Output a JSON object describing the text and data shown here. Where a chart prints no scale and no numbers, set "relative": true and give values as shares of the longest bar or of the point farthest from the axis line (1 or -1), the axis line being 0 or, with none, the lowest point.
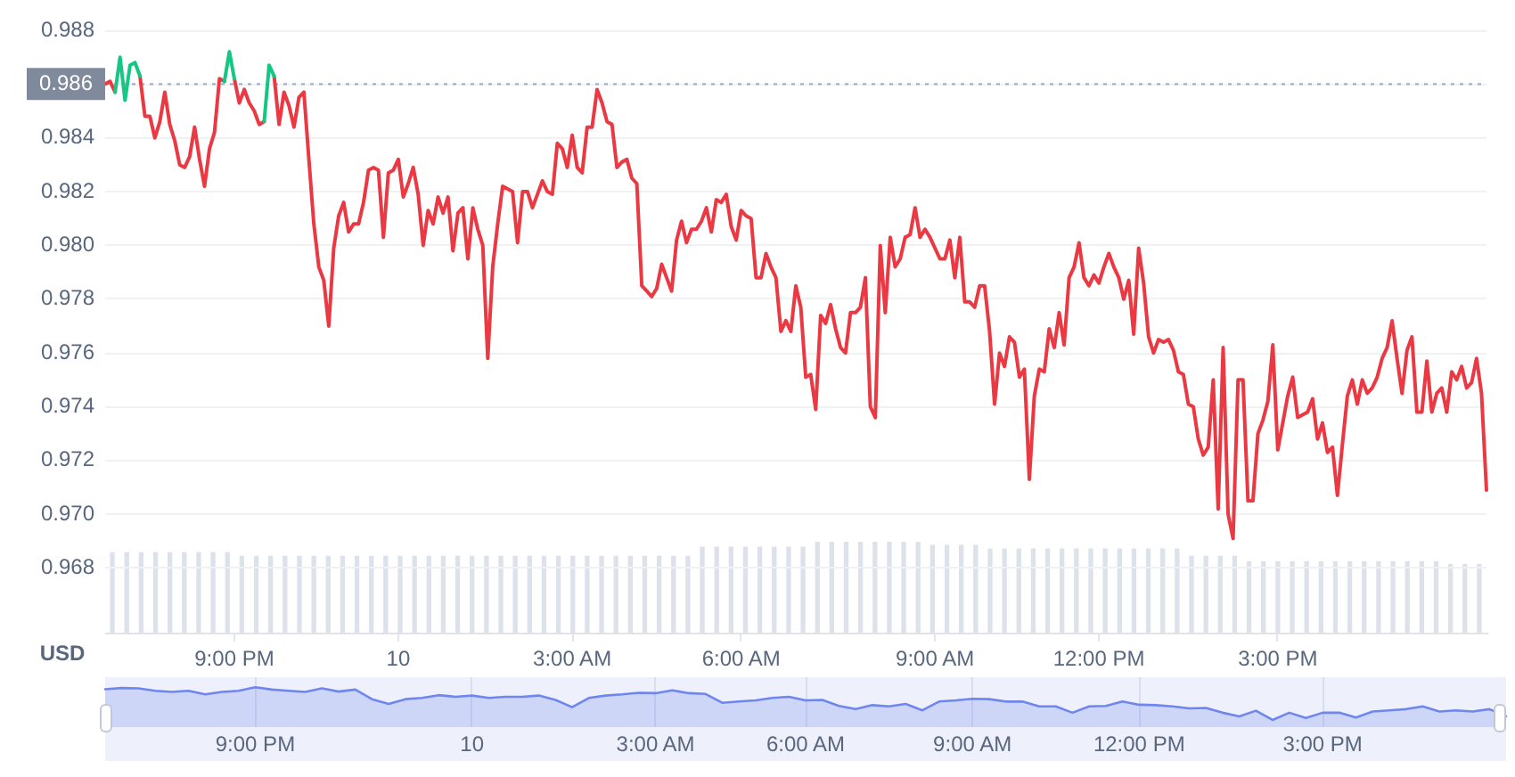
{
  "chart_data": [
    {
      "type": "line",
      "ylabel": "USD",
      "categories": [
        null,
        null,
        null,
        null,
        null,
        null,
        null,
        null,
        null,
        null,
        null,
        null,
        null,
        null,
        null,
        null,
        null,
        null,
        null,
        null,
        null,
        null,
        null,
        null,
        null,
        null,
        "9:00 PM",
        null,
        null,
        null,
        null,
        null,
        null,
        null,
        null,
        null,
        null,
        null,
        null,
        null,
        null,
        null,
        null,
        null,
        null,
        null,
        null,
        null,
        null,
        null,
        null,
        null,
        null,
        null,
        null,
        null,
        null,
        null,
        null,
        "10",
        null,
        null,
        null,
        null,
        null,
        null,
        null,
        null,
        null,
        null,
        null,
        null,
        null,
        null,
        null,
        null,
        null,
        null,
        null,
        null,
        null,
        null,
        null,
        null,
        null,
        null,
        null,
        null,
        null,
        null,
        null,
        null,
        null,
        null,
        "3:00 AM",
        null,
        null,
        null,
        null,
        null,
        null,
        null,
        null,
        null,
        null,
        null,
        null,
        null,
        null,
        null,
        null,
        null,
        null,
        null,
        null,
        null,
        null,
        null,
        null,
        null,
        null,
        null,
        null,
        null,
        null,
        null,
        null,
        null,
        "6:00 AM",
        null,
        null,
        null,
        null,
        null,
        null,
        null,
        null,
        null,
        null,
        null,
        null,
        null,
        null,
        null,
        null,
        null,
        null,
        null,
        null,
        null,
        null,
        null,
        null,
        null,
        null,
        null,
        null,
        null,
        null,
        null,
        null,
        null,
        null,
        null,
        null,
        null,
        null,
        "9:00 AM",
        null,
        null,
        null,
        null,
        null,
        null,
        null,
        null,
        null,
        null,
        null,
        null,
        null,
        null,
        null,
        null,
        null,
        null,
        null,
        null,
        null,
        null,
        null,
        null,
        null,
        null,
        null,
        null,
        null,
        null,
        null,
        null,
        "12:00 PM",
        null,
        null,
        null,
        null,
        null,
        null,
        null,
        null,
        null,
        null,
        null,
        null,
        null,
        null,
        null,
        null,
        null,
        null,
        null,
        null,
        null,
        null,
        null,
        null,
        null,
        null,
        null,
        null,
        null,
        null,
        null,
        null,
        null,
        null,
        null,
        "3:00 PM",
        null,
        null,
        null,
        null,
        null,
        null,
        null,
        null,
        null,
        null,
        null,
        null,
        null,
        null,
        null,
        null,
        null,
        null,
        null,
        null,
        null,
        null,
        null,
        null,
        null,
        null,
        null,
        null,
        null,
        null,
        null,
        null,
        null,
        null,
        null,
        null,
        null,
        null,
        null,
        null,
        null,
        null
      ],
      "series": [
        {
          "color": "#ea3943",
          "values": [
            0.986,
            0.9861,
            0.9857,
            null,
            null,
            null,
            null,
            0.9863,
            0.9848,
            0.9848,
            0.984,
            0.9846,
            0.9857,
            0.9845,
            0.9839,
            0.983,
            0.9829,
            0.9833,
            0.9844,
            0.9832,
            0.9822,
            0.9836,
            0.9842,
            0.9862,
            0.9861,
            null,
            0.9862,
            0.9853,
            0.9858,
            0.9853,
            0.985,
            0.9845,
            0.9846,
            null,
            0.9863,
            0.9845,
            0.9857,
            0.9852,
            0.9844,
            0.9855,
            0.9857,
            0.9832,
            0.9808,
            0.9792,
            0.9787,
            0.977,
            0.9799,
            0.9811,
            0.9816,
            0.9805,
            0.9808,
            0.9808,
            0.9816,
            0.9828,
            0.9829,
            0.9828,
            0.9803,
            0.9827,
            0.9828,
            0.9832,
            0.9818,
            0.9823,
            0.9829,
            0.9819,
            0.98,
            0.9813,
            0.9808,
            0.9818,
            0.9812,
            0.9818,
            0.9798,
            0.9812,
            0.9814,
            0.9795,
            0.9814,
            0.9806,
            0.98,
            0.9758,
            0.9792,
            0.9808,
            0.9822,
            0.9821,
            0.982,
            0.9801,
            0.982,
            0.982,
            0.9814,
            0.9819,
            0.9824,
            0.982,
            0.9819,
            0.9838,
            0.9836,
            0.9829,
            0.9841,
            0.9829,
            0.9827,
            0.9844,
            0.9844,
            0.9858,
            0.9853,
            0.9846,
            0.9845,
            0.9829,
            0.9831,
            0.9832,
            0.9825,
            0.9823,
            0.9785,
            0.9783,
            0.9781,
            0.9784,
            0.9793,
            0.9788,
            0.9783,
            0.9802,
            0.9809,
            0.9801,
            0.9806,
            0.9806,
            0.9809,
            0.9814,
            0.9805,
            0.9817,
            0.9816,
            0.9819,
            0.9807,
            0.9802,
            0.9813,
            0.9811,
            0.981,
            0.9788,
            0.9788,
            0.9797,
            0.9792,
            0.9788,
            0.9768,
            0.9772,
            0.9768,
            0.9785,
            0.9777,
            0.9751,
            0.9752,
            0.9739,
            0.9774,
            0.9771,
            0.9778,
            0.9769,
            0.9762,
            0.976,
            0.9775,
            0.9775,
            0.9777,
            0.9788,
            0.974,
            0.9736,
            0.98,
            0.9775,
            0.9803,
            0.9792,
            0.9795,
            0.9803,
            0.9804,
            0.9814,
            0.9803,
            0.9806,
            0.9803,
            0.9799,
            0.9795,
            0.9795,
            0.9802,
            0.9788,
            0.9803,
            0.9779,
            0.9779,
            0.9777,
            0.9785,
            0.9785,
            0.9768,
            0.9741,
            0.976,
            0.9755,
            0.9766,
            0.9764,
            0.9751,
            0.9754,
            0.9713,
            0.9744,
            0.9754,
            0.9753,
            0.9769,
            0.9762,
            0.9775,
            0.9763,
            0.9788,
            0.9792,
            0.9801,
            0.9788,
            0.9785,
            0.9789,
            0.9786,
            0.9792,
            0.9797,
            0.9792,
            0.9788,
            0.978,
            0.9787,
            0.9767,
            0.9799,
            0.9786,
            0.9766,
            0.976,
            0.9765,
            0.9764,
            0.9765,
            0.9761,
            0.9753,
            0.9752,
            0.9741,
            0.974,
            0.9728,
            0.9722,
            0.9725,
            0.975,
            0.9702,
            0.9762,
            0.97,
            0.9691,
            0.975,
            0.975,
            0.9705,
            0.9705,
            0.973,
            0.9735,
            0.9742,
            0.9763,
            0.9724,
            0.9734,
            0.9744,
            0.9751,
            0.9736,
            0.9737,
            0.9738,
            0.9743,
            0.9728,
            0.9734,
            0.9723,
            0.9725,
            0.9707,
            0.9726,
            0.9744,
            0.975,
            0.9741,
            0.975,
            0.9745,
            0.9747,
            0.9751,
            0.9758,
            0.9762,
            0.9772,
            0.9758,
            0.9745,
            0.9761,
            0.9766,
            0.9738,
            0.9738,
            0.9757,
            0.9738,
            0.9745,
            0.9747,
            0.9738,
            0.9753,
            0.975,
            0.9755,
            0.9747,
            0.9749,
            0.9758,
            0.9745,
            0.9709
          ]
        },
        {
          "color": "#16c784",
          "values": [
            null,
            null,
            0.9857,
            0.987,
            0.9854,
            0.9867,
            0.9868,
            0.9863,
            null,
            null,
            null,
            null,
            null,
            null,
            null,
            null,
            null,
            null,
            null,
            null,
            null,
            null,
            null,
            null,
            0.9861,
            0.9872,
            0.9862,
            null,
            null,
            null,
            null,
            null,
            0.9846,
            0.9867,
            0.9863,
            null,
            null,
            null,
            null,
            null,
            null,
            null,
            null,
            null,
            null,
            null,
            null,
            null,
            null,
            null,
            null,
            null,
            null,
            null,
            null,
            null,
            null,
            null,
            null,
            null,
            null,
            null,
            null,
            null,
            null,
            null,
            null,
            null,
            null,
            null,
            null,
            null,
            null,
            null,
            null,
            null,
            null,
            null,
            null,
            null,
            null,
            null,
            null,
            null,
            null,
            null,
            null,
            null,
            null,
            null,
            null,
            null,
            null,
            null,
            null,
            null,
            null,
            null,
            null,
            null,
            null,
            null,
            null,
            null,
            null,
            null,
            null,
            null,
            null,
            null,
            null,
            null,
            null,
            null,
            null,
            null,
            null,
            null,
            null,
            null,
            null,
            null,
            null,
            null,
            null,
            null,
            null,
            null,
            null,
            null,
            null,
            null,
            null,
            null,
            null,
            null,
            null,
            null,
            null,
            null,
            null,
            null,
            null,
            null,
            null,
            null,
            null,
            null,
            null,
            null,
            null,
            null,
            null,
            null,
            null,
            null,
            null,
            null,
            null,
            null,
            null,
            null,
            null,
            null,
            null,
            null,
            null,
            null,
            null,
            null,
            null,
            null,
            null,
            null,
            null,
            null,
            null,
            null,
            null,
            null,
            null,
            null,
            null,
            null,
            null,
            null,
            null,
            null,
            null,
            null,
            null,
            null,
            null,
            null,
            null,
            null,
            null,
            null,
            null,
            null,
            null,
            null,
            null,
            null,
            null,
            null,
            null,
            null,
            null,
            null,
            null,
            null,
            null,
            null,
            null,
            null,
            null,
            null,
            null,
            null,
            null,
            null,
            null,
            null,
            null,
            null,
            null,
            null,
            null,
            null,
            null,
            null,
            null,
            null,
            null,
            null,
            null,
            null,
            null,
            null,
            null,
            null,
            null,
            null,
            null,
            null,
            null,
            null,
            null,
            null,
            null,
            null,
            null,
            null,
            null,
            null,
            null,
            null,
            null,
            null,
            null,
            null,
            null,
            null,
            null,
            null,
            null,
            null,
            null,
            null,
            null,
            null,
            null,
            null,
            null,
            null,
            null,
            null,
            null
          ]
        }
      ],
      "ylim": [
        0.9656,
        0.988
      ],
      "yticks": [
        0.968,
        {
          "value": 0.97,
          "label": "0.970"
        },
        0.972,
        0.974,
        0.976,
        0.978,
        {
          "value": 0.98,
          "label": "0.980"
        },
        0.982,
        0.984,
        0.986,
        0.988
      ],
      "ref_lines": [
        {
          "axis": "y",
          "value": 0.986,
          "label": "0.986",
          "color": "#a6b0c3",
          "line_style": "dotted"
        }
      ],
      "grid": "y",
      "legend": false,
      "marker": "none"
    },
    {
      "type": "bar",
      "relative": true,
      "categories": [
        null,
        null,
        null,
        null,
        null,
        null,
        null,
        null,
        null,
        null,
        null,
        null,
        null,
        null,
        null,
        null,
        null,
        null,
        null,
        null,
        null,
        null,
        null,
        null,
        null,
        null,
        null,
        null,
        null,
        null,
        null,
        null,
        null,
        null,
        null,
        null,
        null,
        null,
        null,
        null,
        null,
        null,
        null,
        null,
        null,
        null,
        null,
        null,
        null,
        null,
        null,
        null,
        null,
        null,
        null,
        null,
        null,
        null,
        null,
        null,
        null,
        null,
        null,
        null,
        null,
        null,
        null,
        null,
        null,
        null,
        null,
        null,
        null,
        null,
        null,
        null,
        null,
        null,
        null,
        null,
        null,
        null,
        null,
        null,
        null,
        null,
        null,
        null,
        null,
        null,
        null,
        null,
        null,
        null,
        null,
        null
      ],
      "series": [
        {
          "color": "#dde1ea",
          "values": [
            0.88,
            0.88,
            0.88,
            0.88,
            0.88,
            0.88,
            0.88,
            0.88,
            0.88,
            0.84,
            0.84,
            0.84,
            0.84,
            0.84,
            0.84,
            0.84,
            0.84,
            0.84,
            0.84,
            0.84,
            0.84,
            0.84,
            0.84,
            0.84,
            0.84,
            0.84,
            0.84,
            0.84,
            0.84,
            0.84,
            0.84,
            0.84,
            0.84,
            0.84,
            0.84,
            0.84,
            0.84,
            0.84,
            0.84,
            0.84,
            0.84,
            0.94,
            0.94,
            0.94,
            0.94,
            0.94,
            0.94,
            0.94,
            0.94,
            1,
            1,
            1,
            1,
            1,
            1,
            1,
            1,
            0.96,
            0.96,
            0.96,
            0.96,
            0.92,
            0.92,
            0.92,
            0.92,
            0.92,
            0.92,
            0.92,
            0.92,
            0.92,
            0.92,
            0.92,
            0.92,
            0.92,
            0.92,
            0.84,
            0.84,
            0.84,
            0.84,
            0.78,
            0.78,
            0.78,
            0.78,
            0.78,
            0.78,
            0.78,
            0.78,
            0.78,
            0.78,
            0.78,
            0.78,
            0.78,
            0.78,
            0.75,
            0.75,
            0.75
          ]
        }
      ],
      "tick_labels": false
    },
    {
      "type": "area",
      "relative": true,
      "categories": [
        null,
        null,
        null,
        null,
        null,
        null,
        null,
        null,
        null,
        "9:00 PM",
        null,
        null,
        null,
        null,
        null,
        null,
        null,
        null,
        null,
        null,
        null,
        null,
        "10",
        null,
        null,
        null,
        null,
        null,
        null,
        null,
        null,
        null,
        null,
        "3:00 AM",
        null,
        null,
        null,
        null,
        null,
        null,
        null,
        null,
        "6:00 AM",
        null,
        null,
        null,
        null,
        null,
        null,
        null,
        null,
        null,
        "9:00 AM",
        null,
        null,
        null,
        null,
        null,
        null,
        null,
        null,
        null,
        "12:00 PM",
        null,
        null,
        null,
        null,
        null,
        null,
        null,
        null,
        null,
        null,
        "3:00 PM",
        null,
        null,
        null,
        null,
        null,
        null,
        null,
        null,
        null,
        null,
        null
      ],
      "series": [
        {
          "color": "#6f86ee",
          "values": [
            0.95,
            0.98,
            0.97,
            0.91,
            0.88,
            0.91,
            0.82,
            0.88,
            0.91,
            1,
            0.94,
            0.91,
            0.88,
            0.97,
            0.89,
            0.94,
            0.7,
            0.58,
            0.7,
            0.73,
            0.8,
            0.76,
            0.79,
            0.73,
            0.76,
            0.76,
            0.79,
            0.68,
            0.5,
            0.73,
            0.79,
            0.82,
            0.86,
            0.85,
            0.92,
            0.85,
            0.83,
            0.61,
            0.64,
            0.67,
            0.73,
            0.76,
            0.67,
            0.68,
            0.53,
            0.45,
            0.55,
            0.52,
            0.58,
            0.42,
            0.64,
            0.67,
            0.71,
            0.7,
            0.64,
            0.64,
            0.52,
            0.52,
            0.36,
            0.52,
            0.53,
            0.64,
            0.56,
            0.55,
            0.52,
            0.47,
            0.48,
            0.36,
            0.27,
            0.41,
            0.18,
            0.36,
            0.23,
            0.36,
            0.36,
            0.24,
            0.39,
            0.42,
            0.45,
            0.52,
            0.39,
            0.42,
            0.39,
            0.45,
            0.27
          ]
        }
      ],
      "tick_labels": "x",
      "grid": "x",
      "marker": "none"
    }
  ]
}
